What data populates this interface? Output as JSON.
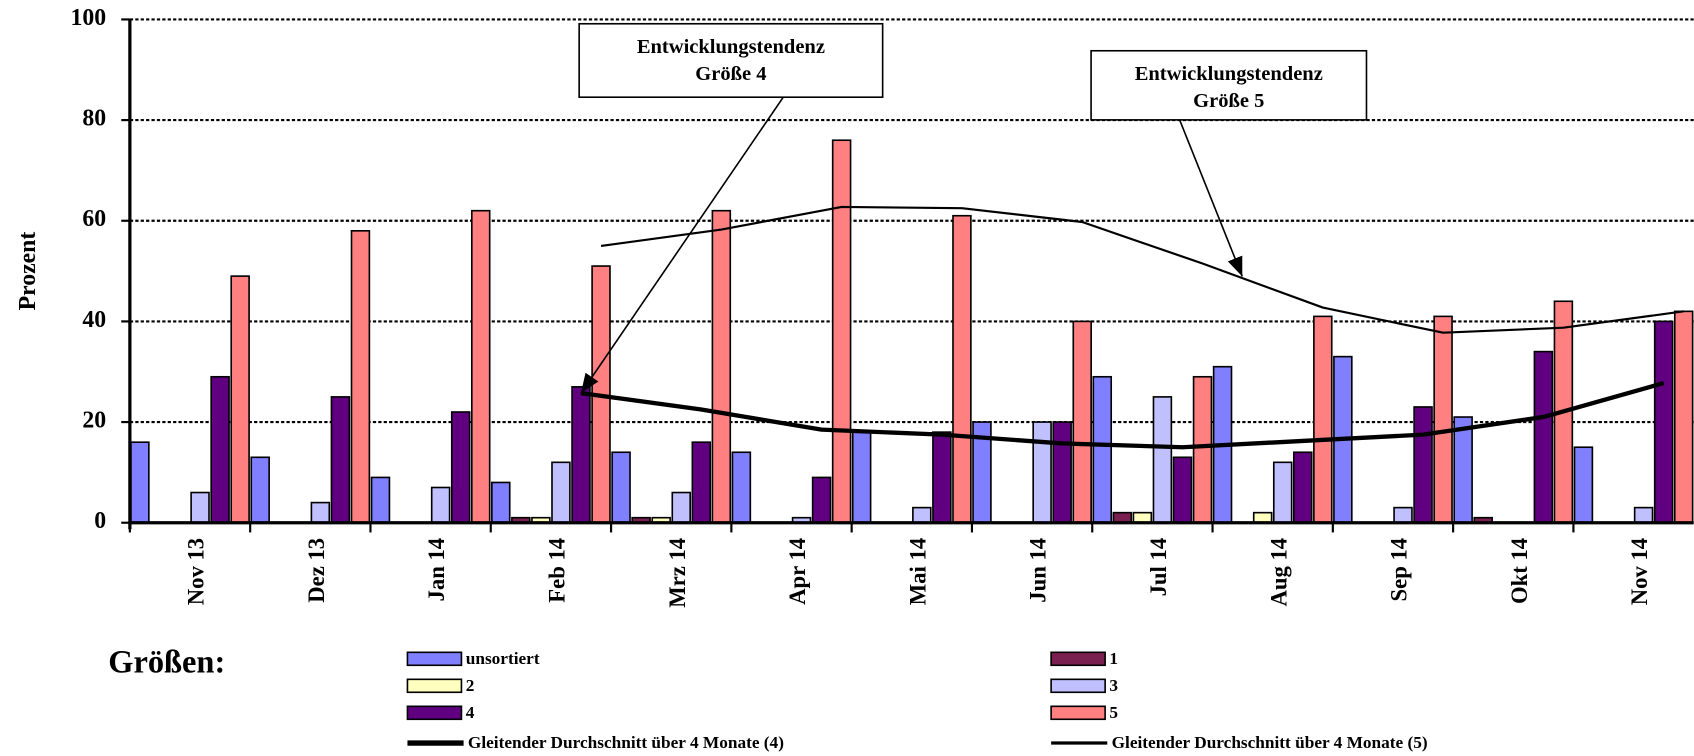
{
  "chart_data": {
    "type": "bar",
    "y_label": "Prozent",
    "legend_title": "Größen:",
    "categories": [
      "Nov 13",
      "Dez 13",
      "Jan 14",
      "Feb 14",
      "Mrz 14",
      "Apr 14",
      "Mai 14",
      "Jun 14",
      "Jul 14",
      "Aug 14",
      "Sep 14",
      "Okt 14",
      "Nov 14"
    ],
    "ylim": [
      0,
      100
    ],
    "yticks": [
      0,
      20,
      40,
      60,
      80,
      100
    ],
    "grid": true,
    "series": [
      {
        "name": "unsortiert",
        "color": "#8080ff",
        "values": [
          16,
          13,
          9,
          8,
          14,
          14,
          18,
          20,
          29,
          31,
          33,
          21,
          15
        ]
      },
      {
        "name": "1",
        "color": "#7a2050",
        "values": [
          0,
          0,
          0,
          1,
          1,
          0,
          0,
          0,
          2,
          0,
          0,
          1,
          0
        ]
      },
      {
        "name": "2",
        "color": "#ffffc0",
        "values": [
          0,
          0,
          0,
          1,
          1,
          0,
          0,
          0,
          2,
          2,
          0,
          0,
          0
        ]
      },
      {
        "name": "3",
        "color": "#c0c0ff",
        "values": [
          6,
          4,
          7,
          12,
          6,
          1,
          3,
          20,
          25,
          12,
          3,
          0,
          3
        ]
      },
      {
        "name": "4",
        "color": "#600080",
        "values": [
          29,
          25,
          22,
          27,
          16,
          9,
          18,
          20,
          13,
          14,
          23,
          34,
          40
        ]
      },
      {
        "name": "5",
        "color": "#ff8080",
        "values": [
          49,
          58,
          62,
          51,
          62,
          76,
          61,
          40,
          29,
          41,
          41,
          44,
          42
        ]
      }
    ],
    "lines": [
      {
        "name": "Gleitender Durchschnitt über 4 Monate (4)",
        "color": "#000000",
        "width": 4,
        "values": [
          null,
          null,
          null,
          25.75,
          22.5,
          18.5,
          17.5,
          15.75,
          15,
          16.25,
          17.5,
          21,
          27.75
        ]
      },
      {
        "name": "Gleitender Durchschnitt über 4 Monate (5)",
        "color": "#000000",
        "width": 2,
        "values": [
          null,
          null,
          null,
          55,
          58.25,
          62.75,
          62.5,
          59.75,
          51.5,
          42.75,
          37.75,
          38.75,
          42
        ]
      }
    ],
    "annotations": [
      {
        "lines": [
          "Entwicklungstendenz",
          "Größe 4"
        ]
      },
      {
        "lines": [
          "Entwicklungstendenz",
          "Größe 5"
        ]
      }
    ]
  }
}
